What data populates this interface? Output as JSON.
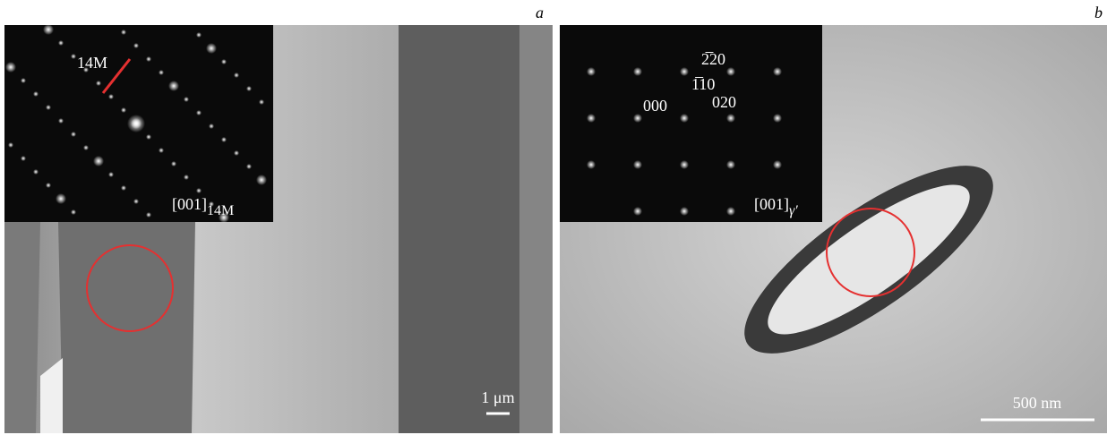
{
  "panels": [
    {
      "label": "a",
      "annotation": "14M",
      "zone": "[001]",
      "zone_sub": "14M",
      "scale_bar": "1 μm"
    },
    {
      "label": "b",
      "spots": [
        "000",
        "020",
        "1̅10",
        "2̅20"
      ],
      "zone": "[001]",
      "zone_sub": "γ′",
      "scale_bar": "500 nm"
    }
  ]
}
